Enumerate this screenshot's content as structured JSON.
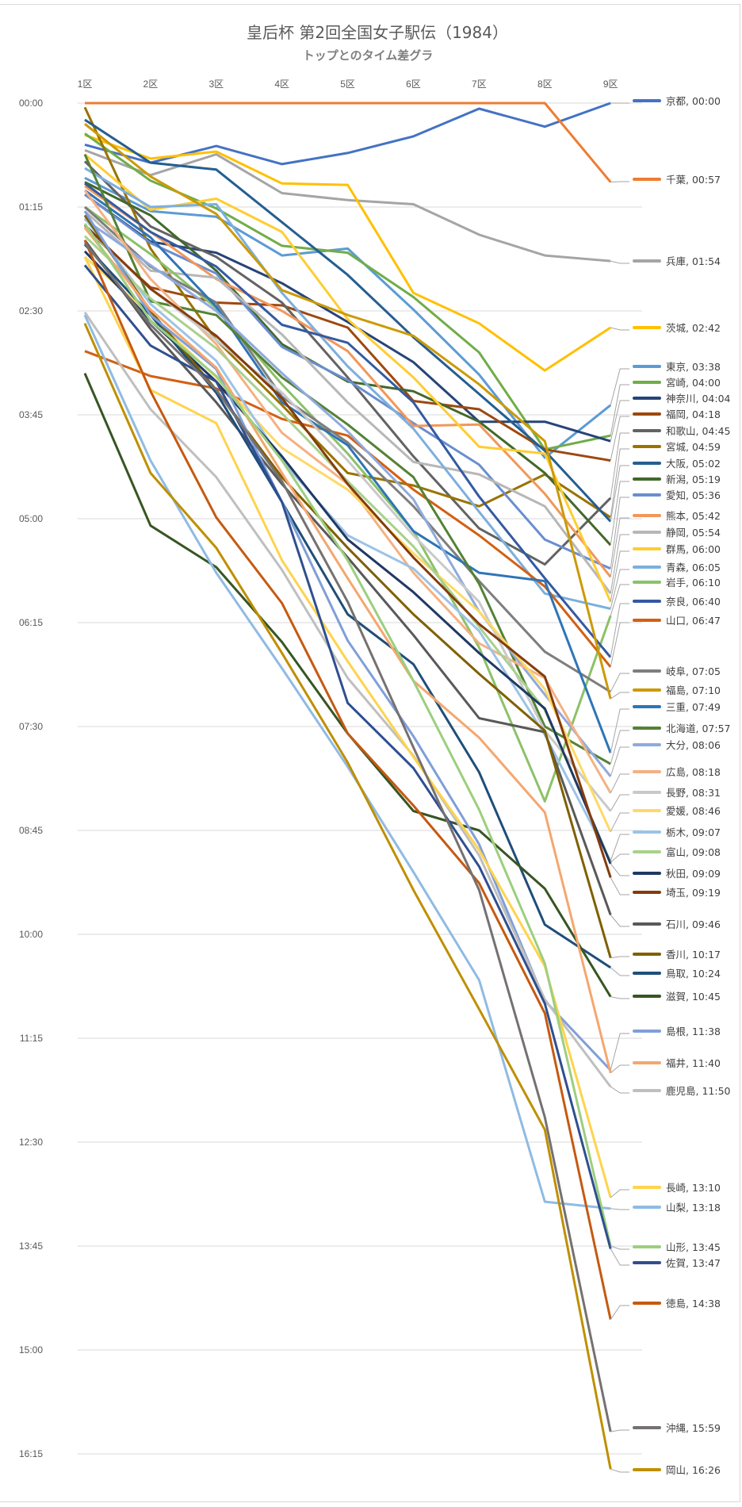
{
  "chart_data": {
    "type": "line",
    "title": "皇后杯 第2回全国女子駅伝（1984）",
    "subtitle": "トップとのタイム差グラ",
    "xlabel": "",
    "ylabel": "",
    "value_unit": "hours-fraction of gap converted: values are minutes behind leader",
    "categories": [
      "1区",
      "2区",
      "3区",
      "4区",
      "5区",
      "6区",
      "7区",
      "8区",
      "9区"
    ],
    "ylim_minutes": [
      0,
      990
    ],
    "y_ticks": [
      "00:00",
      "01:15",
      "02:30",
      "03:45",
      "05:00",
      "06:15",
      "07:30",
      "08:45",
      "10:00",
      "11:15",
      "12:30",
      "13:45",
      "15:00",
      "16:15"
    ],
    "grid": true,
    "y_inverted": true,
    "legend_placement": "right, at line ends",
    "series": [
      {
        "name": "京都",
        "final": "00:00",
        "color": "#4472c4",
        "values": [
          30,
          43,
          31,
          44,
          36,
          24,
          4,
          17,
          0
        ]
      },
      {
        "name": "千葉",
        "final": "00:57",
        "color": "#ed7d31",
        "values": [
          0,
          0,
          0,
          0,
          0,
          0,
          0,
          0,
          57
        ]
      },
      {
        "name": "兵庫",
        "final": "01:54",
        "color": "#a5a5a5",
        "values": [
          34,
          52,
          37,
          65,
          70,
          73,
          95,
          110,
          114
        ]
      },
      {
        "name": "茨城",
        "final": "02:42",
        "color": "#ffc000",
        "values": [
          23,
          40,
          35,
          58,
          59,
          137,
          159,
          193,
          162
        ]
      },
      {
        "name": "東京",
        "final": "03:38",
        "color": "#5b9bd5",
        "values": [
          54,
          78,
          82,
          110,
          105,
          149,
          196,
          256,
          218
        ]
      },
      {
        "name": "宮崎",
        "final": "04:00",
        "color": "#70ad47",
        "values": [
          22,
          56,
          76,
          103,
          108,
          140,
          180,
          250,
          240
        ]
      },
      {
        "name": "神奈川",
        "final": "04:04",
        "color": "#264478",
        "values": [
          66,
          100,
          108,
          130,
          158,
          187,
          230,
          230,
          244
        ]
      },
      {
        "name": "福岡",
        "final": "04:18",
        "color": "#9e480e",
        "values": [
          90,
          133,
          144,
          146,
          162,
          215,
          221,
          250,
          258
        ]
      },
      {
        "name": "和歌山",
        "final": "04:45",
        "color": "#636363",
        "values": [
          42,
          89,
          111,
          144,
          198,
          255,
          307,
          333,
          285
        ]
      },
      {
        "name": "宮城",
        "final": "04:59",
        "color": "#997300",
        "values": [
          3,
          105,
          171,
          218,
          267,
          276,
          291,
          268,
          299
        ]
      },
      {
        "name": "大阪",
        "final": "05:02",
        "color": "#255e91",
        "values": [
          12,
          43,
          48,
          86,
          124,
          169,
          210,
          251,
          302
        ]
      },
      {
        "name": "新潟",
        "final": "05:19",
        "color": "#43682b",
        "values": [
          57,
          81,
          121,
          174,
          201,
          208,
          230,
          267,
          319
        ]
      },
      {
        "name": "愛知",
        "final": "05:36",
        "color": "#698ed0",
        "values": [
          66,
          101,
          123,
          176,
          200,
          231,
          261,
          315,
          336
        ]
      },
      {
        "name": "熊本",
        "final": "05:42",
        "color": "#f1975a",
        "values": [
          60,
          93,
          127,
          150,
          179,
          233,
          232,
          282,
          342
        ]
      },
      {
        "name": "静岡",
        "final": "05:54",
        "color": "#b7b7b7",
        "values": [
          78,
          121,
          126,
          167,
          216,
          259,
          268,
          291,
          354
        ]
      },
      {
        "name": "群馬",
        "final": "06:00",
        "color": "#ffcd33",
        "values": [
          37,
          77,
          69,
          93,
          156,
          198,
          248,
          253,
          360
        ]
      },
      {
        "name": "青森",
        "final": "06:05",
        "color": "#7cafdd",
        "values": [
          47,
          75,
          73,
          137,
          190,
          235,
          295,
          354,
          365
        ]
      },
      {
        "name": "岩手",
        "final": "06:10",
        "color": "#8cc168",
        "values": [
          75,
          109,
          148,
          203,
          253,
          309,
          393,
          504,
          370
        ]
      },
      {
        "name": "奈良",
        "final": "06:40",
        "color": "#335aa1",
        "values": [
          58,
          93,
          118,
          160,
          173,
          216,
          284,
          343,
          400
        ]
      },
      {
        "name": "山口",
        "final": "06:47",
        "color": "#d26012",
        "values": [
          179,
          197,
          206,
          228,
          240,
          279,
          312,
          349,
          407
        ]
      },
      {
        "name": "岐阜",
        "final": "07:05",
        "color": "#7e7e7e",
        "values": [
          75,
          118,
          144,
          212,
          245,
          291,
          345,
          396,
          425
        ]
      },
      {
        "name": "福島",
        "final": "07:10",
        "color": "#cc9a06",
        "values": [
          15,
          53,
          80,
          135,
          153,
          168,
          203,
          244,
          430
        ]
      },
      {
        "name": "三重",
        "final": "07:49",
        "color": "#2e75b6",
        "values": [
          63,
          97,
          147,
          216,
          247,
          309,
          339,
          345,
          469
        ]
      },
      {
        "name": "北海道",
        "final": "07:57",
        "color": "#548235",
        "values": [
          37,
          143,
          153,
          198,
          232,
          270,
          347,
          450,
          477
        ]
      },
      {
        "name": "大分",
        "final": "08:06",
        "color": "#8faadc",
        "values": [
          84,
          117,
          150,
          195,
          237,
          286,
          367,
          427,
          486
        ]
      },
      {
        "name": "広島",
        "final": "08:18",
        "color": "#f4b183",
        "values": [
          63,
          127,
          174,
          238,
          275,
          339,
          390,
          415,
          498
        ]
      },
      {
        "name": "長野",
        "final": "08:31",
        "color": "#c9c9c9",
        "values": [
          89,
          134,
          171,
          209,
          258,
          312,
          360,
          453,
          511
        ]
      },
      {
        "name": "愛媛",
        "final": "08:46",
        "color": "#ffd966",
        "values": [
          111,
          153,
          198,
          249,
          279,
          325,
          367,
          423,
          526
        ]
      },
      {
        "name": "栃木",
        "final": "09:07",
        "color": "#9dc3e6",
        "values": [
          83,
          145,
          186,
          258,
          312,
          336,
          381,
          456,
          547
        ]
      },
      {
        "name": "富山",
        "final": "09:08",
        "color": "#a9d18e",
        "values": [
          96,
          141,
          177,
          224,
          273,
          320,
          378,
          438,
          548
        ]
      },
      {
        "name": "秋田",
        "final": "09:09",
        "color": "#203864",
        "values": [
          107,
          157,
          201,
          255,
          315,
          353,
          397,
          437,
          549
        ]
      },
      {
        "name": "埼玉",
        "final": "09:19",
        "color": "#843c0c",
        "values": [
          88,
          134,
          168,
          213,
          275,
          328,
          376,
          414,
          559
        ]
      },
      {
        "name": "石川",
        "final": "09:46",
        "color": "#595959",
        "values": [
          99,
          163,
          216,
          275,
          328,
          384,
          444,
          454,
          586
        ]
      },
      {
        "name": "香川",
        "final": "10:17",
        "color": "#7f6000",
        "values": [
          81,
          150,
          207,
          270,
          321,
          369,
          412,
          453,
          617
        ]
      },
      {
        "name": "鳥取",
        "final": "10:24",
        "color": "#1f4e79",
        "values": [
          102,
          153,
          209,
          288,
          369,
          405,
          483,
          593,
          624
        ]
      },
      {
        "name": "滋賀",
        "final": "10:45",
        "color": "#375623",
        "values": [
          195,
          305,
          335,
          389,
          455,
          511,
          525,
          567,
          645
        ]
      },
      {
        "name": "島根",
        "final": "11:38",
        "color": "#7f9fd9",
        "values": [
          78,
          153,
          192,
          288,
          388,
          457,
          535,
          648,
          698
        ]
      },
      {
        "name": "福井",
        "final": "11:40",
        "color": "#f4a76f",
        "values": [
          90,
          149,
          191,
          267,
          343,
          417,
          458,
          512,
          700
        ]
      },
      {
        "name": "鹿児島",
        "final": "11:50",
        "color": "#bfbfbf",
        "values": [
          151,
          221,
          270,
          337,
          415,
          471,
          543,
          647,
          710
        ]
      },
      {
        "name": "長崎",
        "final": "13:10",
        "color": "#ffd34d",
        "values": [
          111,
          207,
          231,
          330,
          403,
          472,
          539,
          623,
          790
        ]
      },
      {
        "name": "山梨",
        "final": "13:18",
        "color": "#8fbbe3",
        "values": [
          153,
          258,
          339,
          408,
          479,
          555,
          633,
          793,
          798
        ]
      },
      {
        "name": "山形",
        "final": "13:45",
        "color": "#9ccf7e",
        "values": [
          87,
          157,
          197,
          258,
          330,
          417,
          510,
          621,
          825
        ]
      },
      {
        "name": "佐賀",
        "final": "13:47",
        "color": "#2f4f8f",
        "values": [
          117,
          175,
          201,
          288,
          433,
          480,
          551,
          650,
          827
        ]
      },
      {
        "name": "徳島",
        "final": "14:38",
        "color": "#c55a11",
        "values": [
          99,
          208,
          299,
          361,
          455,
          507,
          563,
          657,
          878
        ]
      },
      {
        "name": "沖縄",
        "final": "15:59",
        "color": "#767171",
        "values": [
          101,
          160,
          207,
          273,
          360,
          465,
          568,
          732,
          959
        ]
      },
      {
        "name": "岡山",
        "final": "16:26",
        "color": "#bf8f00",
        "values": [
          159,
          267,
          321,
          397,
          476,
          568,
          654,
          741,
          986
        ]
      }
    ]
  }
}
